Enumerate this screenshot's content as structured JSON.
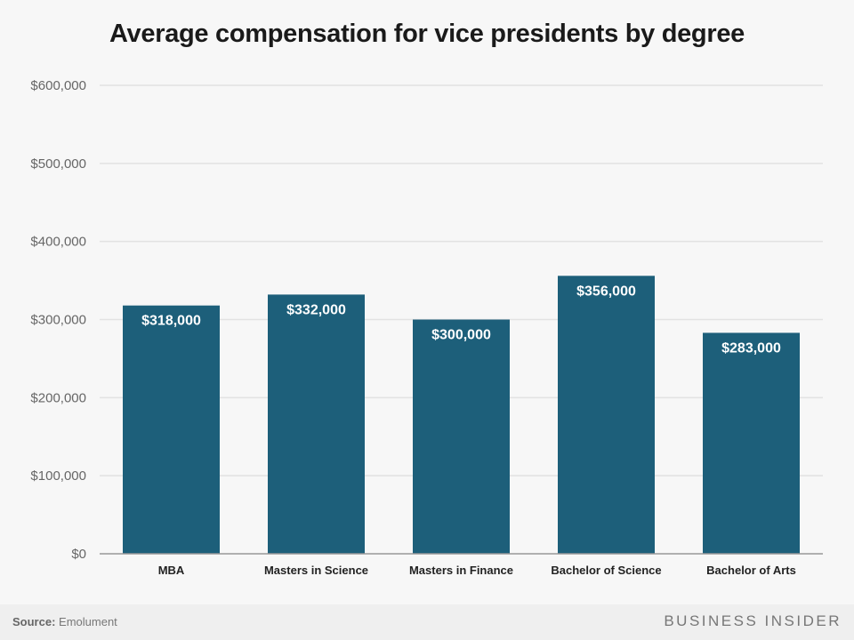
{
  "chart_data": {
    "type": "bar",
    "title": "Average compensation for vice presidents by degree",
    "categories": [
      "MBA",
      "Masters in Science",
      "Masters in Finance",
      "Bachelor of Science",
      "Bachelor of Arts"
    ],
    "values": [
      318000,
      332000,
      300000,
      356000,
      283000
    ],
    "data_labels": [
      "$318,000",
      "$332,000",
      "$300,000",
      "$356,000",
      "$283,000"
    ],
    "yticks": [
      0,
      100000,
      200000,
      300000,
      400000,
      500000,
      600000
    ],
    "ytick_labels": [
      "$0",
      "$100,000",
      "$200,000",
      "$300,000",
      "$400,000",
      "$500,000",
      "$600,000"
    ],
    "ylim": [
      0,
      600000
    ],
    "grid": true,
    "bar_color": "#1d5f7a"
  },
  "footer": {
    "source_label": "Source:",
    "source_value": "Emolument",
    "brand": "BUSINESS INSIDER"
  }
}
